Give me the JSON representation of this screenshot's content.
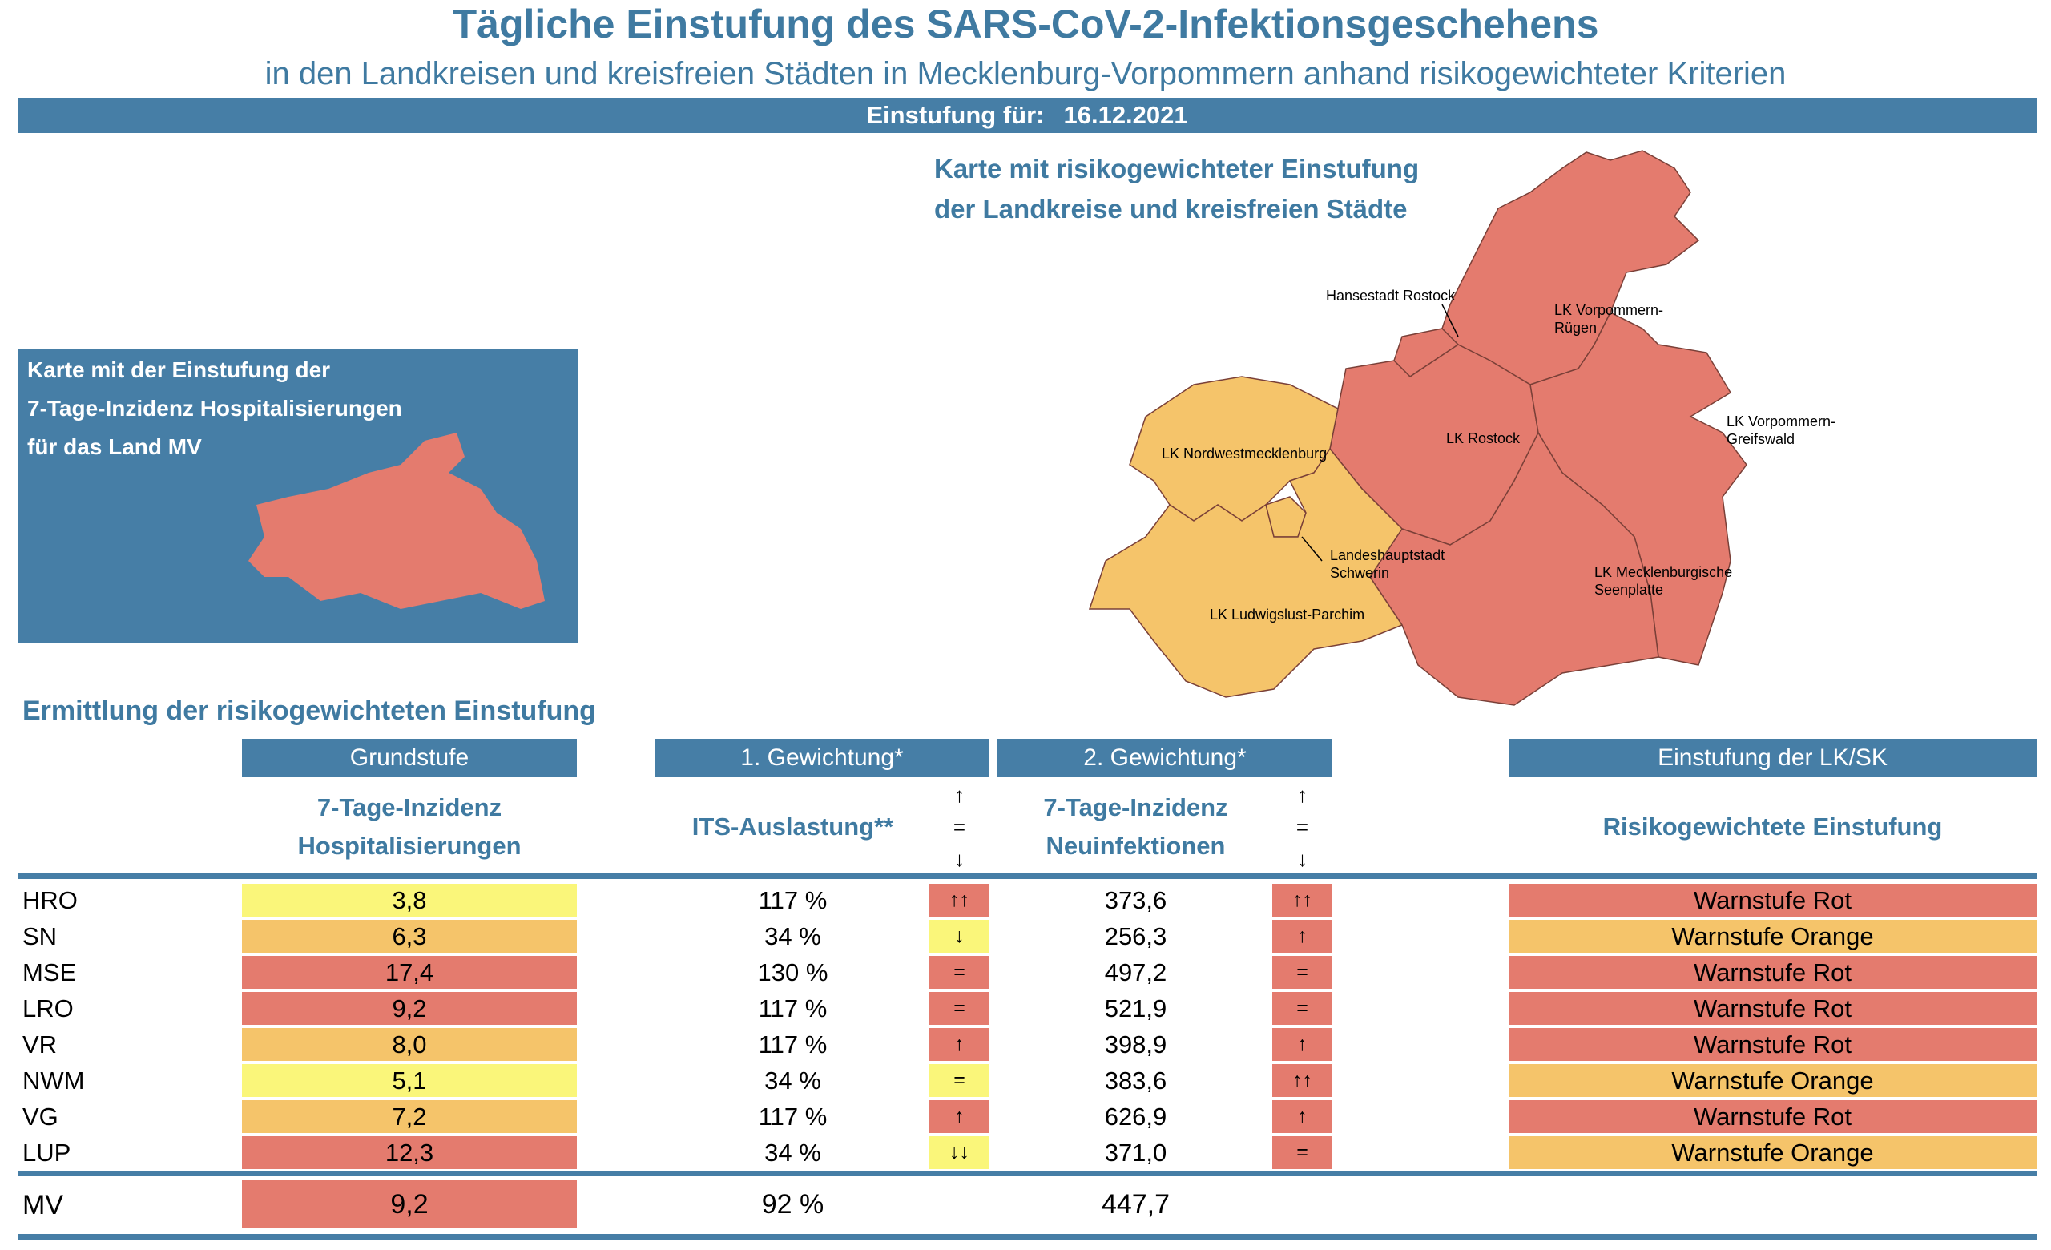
{
  "header": {
    "title": "Tägliche Einstufung des SARS-CoV-2-Infektionsgeschehens",
    "subtitle": "in den Landkreisen und kreisfreien Städten in Mecklenburg-Vorpommern anhand risikogewichteter Kriterien",
    "date_label": "Einstufung für:",
    "date_value": "16.12.2021"
  },
  "map": {
    "title_line1": "Karte mit risikogewichteter Einstufung",
    "title_line2": "der Landkreise und kreisfreien Städte",
    "labels": {
      "rostock": "Hansestadt Rostock",
      "vr1": "LK Vorpommern-",
      "vr2": "Rügen",
      "lro": "LK Rostock",
      "vg1": "LK Vorpommern-",
      "vg2": "Greifswald",
      "nwm": "LK Nordwestmecklenburg",
      "sn1": "Landeshauptstadt",
      "sn2": "Schwerin",
      "mse1": "LK Mecklenburgische",
      "mse2": "Seenplatte",
      "lup": "LK Ludwigslust-Parchim"
    },
    "colors": {
      "rot": "#e47b6e",
      "orange": "#f5c46a",
      "yellow": "#faf67a"
    }
  },
  "inset": {
    "line1": "Karte mit der Einstufung der",
    "line2": "7-Tage-Inzidenz Hospitalisierungen",
    "line3": "für das Land MV"
  },
  "table": {
    "section_title": "Ermittlung der risikogewichteten Einstufung",
    "headers": {
      "grundstufe": "Grundstufe",
      "gewichtung1": "1. Gewichtung*",
      "gewichtung2": "2. Gewichtung*",
      "einstufung": "Einstufung der LK/SK"
    },
    "subheaders": {
      "hosp_line1": "7-Tage-Inzidenz",
      "hosp_line2": "Hospitalisierungen",
      "its": "ITS-Auslastung**",
      "inz_line1": "7-Tage-Inzidenz",
      "inz_line2": "Neuinfektionen",
      "risk": "Risikogewichtete Einstufung",
      "arrow_up": "↑",
      "arrow_eq": "=",
      "arrow_down": "↓"
    },
    "rows": [
      {
        "id": "HRO",
        "hosp": "3,8",
        "hosp_color": "#faf67a",
        "its": "117 %",
        "its_trend": "↑↑",
        "its_color": "#e47b6e",
        "inz": "373,6",
        "inz_trend": "↑↑",
        "inz_color": "#e47b6e",
        "level": "Warnstufe Rot",
        "level_color": "#e47b6e"
      },
      {
        "id": "SN",
        "hosp": "6,3",
        "hosp_color": "#f5c46a",
        "its": "34 %",
        "its_trend": "↓",
        "its_color": "#faf67a",
        "inz": "256,3",
        "inz_trend": "↑",
        "inz_color": "#e47b6e",
        "level": "Warnstufe Orange",
        "level_color": "#f5c46a"
      },
      {
        "id": "MSE",
        "hosp": "17,4",
        "hosp_color": "#e47b6e",
        "its": "130 %",
        "its_trend": "=",
        "its_color": "#e47b6e",
        "inz": "497,2",
        "inz_trend": "=",
        "inz_color": "#e47b6e",
        "level": "Warnstufe Rot",
        "level_color": "#e47b6e"
      },
      {
        "id": "LRO",
        "hosp": "9,2",
        "hosp_color": "#e47b6e",
        "its": "117 %",
        "its_trend": "=",
        "its_color": "#e47b6e",
        "inz": "521,9",
        "inz_trend": "=",
        "inz_color": "#e47b6e",
        "level": "Warnstufe Rot",
        "level_color": "#e47b6e"
      },
      {
        "id": "VR",
        "hosp": "8,0",
        "hosp_color": "#f5c46a",
        "its": "117 %",
        "its_trend": "↑",
        "its_color": "#e47b6e",
        "inz": "398,9",
        "inz_trend": "↑",
        "inz_color": "#e47b6e",
        "level": "Warnstufe Rot",
        "level_color": "#e47b6e"
      },
      {
        "id": "NWM",
        "hosp": "5,1",
        "hosp_color": "#faf67a",
        "its": "34 %",
        "its_trend": "=",
        "its_color": "#faf67a",
        "inz": "383,6",
        "inz_trend": "↑↑",
        "inz_color": "#e47b6e",
        "level": "Warnstufe Orange",
        "level_color": "#f5c46a"
      },
      {
        "id": "VG",
        "hosp": "7,2",
        "hosp_color": "#f5c46a",
        "its": "117 %",
        "its_trend": "↑",
        "its_color": "#e47b6e",
        "inz": "626,9",
        "inz_trend": "↑",
        "inz_color": "#e47b6e",
        "level": "Warnstufe Rot",
        "level_color": "#e47b6e"
      },
      {
        "id": "LUP",
        "hosp": "12,3",
        "hosp_color": "#e47b6e",
        "its": "34 %",
        "its_trend": "↓↓",
        "its_color": "#faf67a",
        "inz": "371,0",
        "inz_trend": "=",
        "inz_color": "#e47b6e",
        "level": "Warnstufe Orange",
        "level_color": "#f5c46a"
      }
    ],
    "total": {
      "id": "MV",
      "hosp": "9,2",
      "hosp_color": "#e47b6e",
      "its": "92 %",
      "inz": "447,7"
    }
  }
}
